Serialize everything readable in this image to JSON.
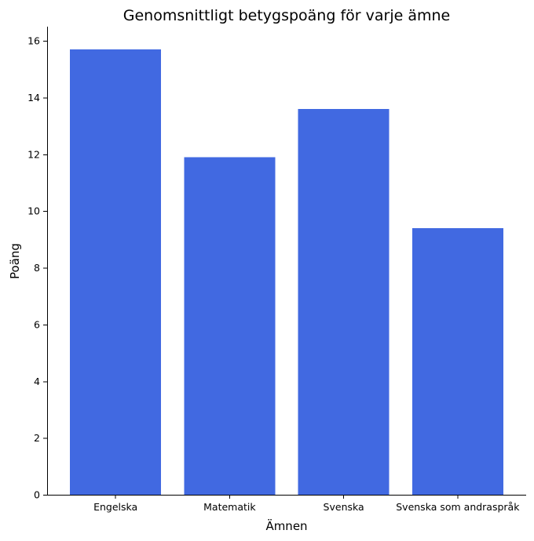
{
  "chart_data": {
    "type": "bar",
    "title": "Genomsnittligt betygspoäng för varje ämne",
    "xlabel": "Ämnen",
    "ylabel": "Poäng",
    "categories": [
      "Engelska",
      "Matematik",
      "Svenska",
      "Svenska som andraspråk"
    ],
    "values": [
      15.7,
      11.9,
      13.6,
      9.4
    ],
    "ylim": [
      0,
      16.5
    ],
    "yticks": [
      0,
      2,
      4,
      6,
      8,
      10,
      12,
      14,
      16
    ],
    "grid": false,
    "legend": "none",
    "bar_color": "#4169E1"
  }
}
